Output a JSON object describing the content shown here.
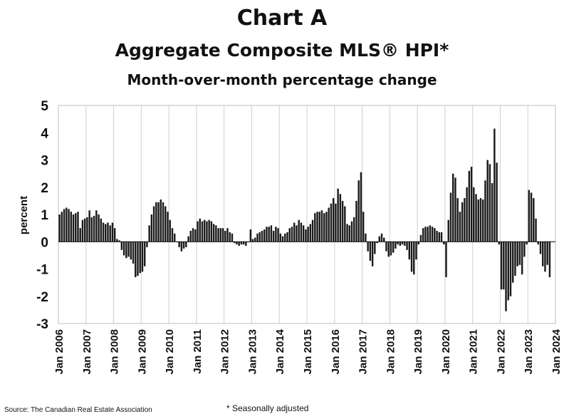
{
  "chart_data": {
    "type": "bar",
    "title": "Chart A",
    "subtitle": "Aggregate Composite MLS® HPI*",
    "subtitle2": "Month-over-month percentage change",
    "ylabel": "percent",
    "ylim": [
      -3,
      5
    ],
    "yticks": [
      5,
      4,
      3,
      2,
      1,
      0,
      -1,
      -2,
      -3
    ],
    "grid": "vertical",
    "xtick_labels": [
      "Jan 2006",
      "Jan 2007",
      "Jan 2008",
      "Jan 2009",
      "Jan 2010",
      "Jan 2011",
      "Jan 2012",
      "Jan 2013",
      "Jan 2014",
      "Jan 2015",
      "Jan 2016",
      "Jan 2017",
      "Jan 2018",
      "Jan 2019",
      "Jan 2020",
      "Jan 2021",
      "Jan 2022",
      "Jan 2023",
      "Jan 2024"
    ],
    "start_month": "Jan 2006",
    "bar_color": "#1a1a1a",
    "values": [
      1.0,
      1.1,
      1.2,
      1.25,
      1.2,
      1.1,
      1.0,
      1.05,
      1.1,
      0.5,
      0.8,
      0.85,
      0.9,
      1.15,
      0.9,
      0.95,
      1.15,
      1.0,
      0.85,
      0.7,
      0.65,
      0.7,
      0.6,
      0.7,
      0.5,
      0.1,
      0.05,
      -0.3,
      -0.5,
      -0.6,
      -0.55,
      -0.65,
      -0.8,
      -1.3,
      -1.25,
      -1.15,
      -1.1,
      -0.9,
      -0.2,
      0.6,
      1.0,
      1.3,
      1.45,
      1.45,
      1.55,
      1.45,
      1.3,
      1.1,
      0.8,
      0.5,
      0.3,
      0.0,
      -0.2,
      -0.35,
      -0.25,
      -0.2,
      0.2,
      0.4,
      0.5,
      0.45,
      0.75,
      0.85,
      0.75,
      0.8,
      0.75,
      0.8,
      0.75,
      0.65,
      0.6,
      0.5,
      0.5,
      0.5,
      0.4,
      0.5,
      0.35,
      0.3,
      -0.05,
      -0.1,
      -0.15,
      -0.1,
      -0.1,
      -0.15,
      0.0,
      0.45,
      0.1,
      0.15,
      0.3,
      0.35,
      0.4,
      0.45,
      0.55,
      0.55,
      0.6,
      0.4,
      0.55,
      0.5,
      0.3,
      0.2,
      0.3,
      0.35,
      0.5,
      0.55,
      0.7,
      0.6,
      0.8,
      0.7,
      0.6,
      0.45,
      0.55,
      0.65,
      0.8,
      1.05,
      1.1,
      1.1,
      1.15,
      1.05,
      1.1,
      1.25,
      1.4,
      1.6,
      1.4,
      1.95,
      1.75,
      1.5,
      1.3,
      0.65,
      0.6,
      0.75,
      0.9,
      1.5,
      2.25,
      2.55,
      1.1,
      0.3,
      -0.35,
      -0.7,
      -0.9,
      -0.45,
      -0.05,
      0.2,
      0.3,
      0.15,
      -0.35,
      -0.55,
      -0.5,
      -0.4,
      -0.25,
      -0.1,
      -0.15,
      -0.1,
      -0.15,
      -0.3,
      -0.65,
      -1.1,
      -1.2,
      -0.65,
      -0.1,
      0.25,
      0.5,
      0.55,
      0.55,
      0.6,
      0.55,
      0.5,
      0.4,
      0.35,
      0.35,
      -0.1,
      -1.3,
      0.8,
      1.8,
      2.5,
      2.35,
      1.6,
      1.1,
      1.45,
      1.6,
      2.0,
      2.6,
      2.75,
      2.0,
      1.75,
      1.55,
      1.6,
      1.55,
      2.25,
      3.0,
      2.85,
      2.15,
      4.15,
      2.9,
      -0.1,
      -1.75,
      -1.75,
      -2.55,
      -2.15,
      -2.0,
      -1.5,
      -1.25,
      -0.9,
      -0.85,
      -1.2,
      -0.55,
      -0.1,
      1.9,
      1.8,
      1.6,
      0.85,
      -0.1,
      -0.45,
      -0.9,
      -1.1,
      -0.85,
      -1.3
    ]
  },
  "source_text": "Source: The Canadian Real Estate Association",
  "footnote_text": "* Seasonally adjusted"
}
